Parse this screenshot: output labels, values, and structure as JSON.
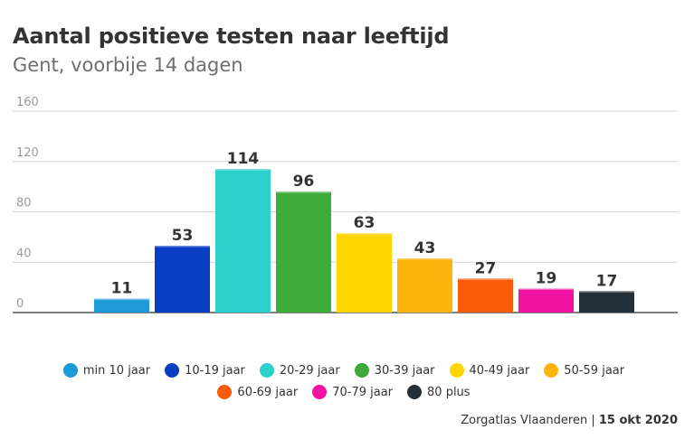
{
  "header": {
    "title": "Aantal positieve testen naar leeftijd",
    "subtitle": "Gent, voorbije 14 dagen"
  },
  "footer": {
    "source": "Zorgatlas Vlaanderen",
    "separator": "|",
    "date": "15 okt 2020"
  },
  "chart_data": {
    "type": "bar",
    "title": "Aantal positieve testen naar leeftijd",
    "subtitle": "Gent, voorbije 14 dagen",
    "xlabel": "",
    "ylabel": "",
    "ylim": [
      0,
      160
    ],
    "yticks": [
      0,
      40,
      80,
      120,
      160
    ],
    "grid": true,
    "legend_position": "bottom",
    "categories": [
      "min 10 jaar",
      "10-19 jaar",
      "20-29 jaar",
      "30-39 jaar",
      "40-49 jaar",
      "50-59 jaar",
      "60-69 jaar",
      "70-79 jaar",
      "80 plus"
    ],
    "values": [
      11,
      53,
      114,
      96,
      63,
      43,
      27,
      19,
      17
    ],
    "colors": [
      "#1e9ad9",
      "#0a3ec2",
      "#2dd0cb",
      "#3daa3a",
      "#ffd600",
      "#fbb40c",
      "#f95b08",
      "#f212a1",
      "#233039"
    ]
  }
}
